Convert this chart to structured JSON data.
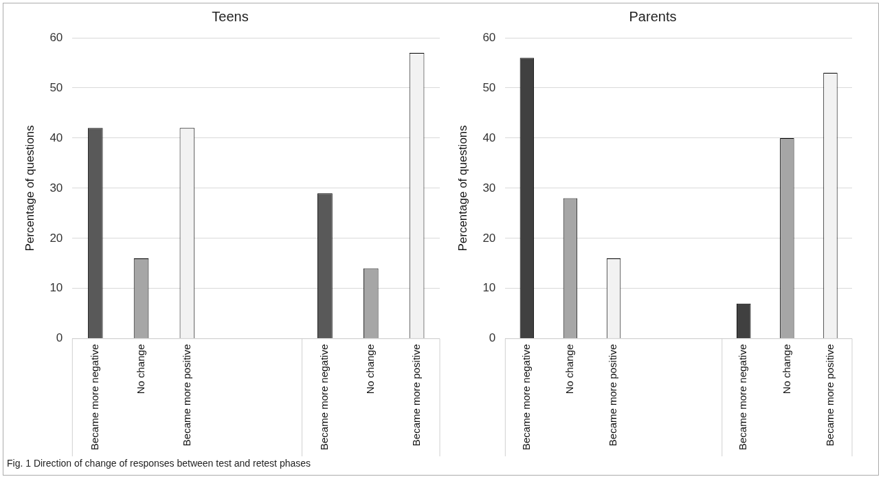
{
  "chart_data": [
    {
      "type": "bar",
      "title": "Teens",
      "ylabel": "Percentage of questions",
      "categories": [
        "Became more negative",
        "No change",
        "Became more positive",
        null,
        null,
        "Became more negative",
        "No change",
        "Became more positive"
      ],
      "values": [
        42,
        16,
        42,
        null,
        null,
        29,
        14,
        57
      ],
      "colors": [
        "#595959",
        "#a6a6a6",
        "#f2f2f2",
        "#ffffff",
        "#ffffff",
        "#595959",
        "#a6a6a6",
        "#f2f2f2"
      ],
      "ylim": [
        0,
        60
      ],
      "yticks": [
        0,
        10,
        20,
        30,
        40,
        50,
        60
      ],
      "grid": "y",
      "legend": false,
      "annotations": [
        "Fig. 1  Direction of change of responses between test and retest phases"
      ]
    },
    {
      "type": "bar",
      "title": "Parents",
      "ylabel": "Percentage of questions",
      "categories": [
        "Became more negative",
        "No change",
        "Became more positive",
        null,
        null,
        "Became more negative",
        "No change",
        "Became more positive"
      ],
      "values": [
        56,
        28,
        16,
        null,
        null,
        7,
        40,
        53
      ],
      "colors": [
        "#404040",
        "#a6a6a6",
        "#f2f2f2",
        "#ffffff",
        "#ffffff",
        "#404040",
        "#a6a6a6",
        "#f2f2f2"
      ],
      "ylim": [
        0,
        60
      ],
      "yticks": [
        0,
        10,
        20,
        30,
        40,
        50,
        60
      ],
      "grid": "y",
      "legend": false
    }
  ]
}
